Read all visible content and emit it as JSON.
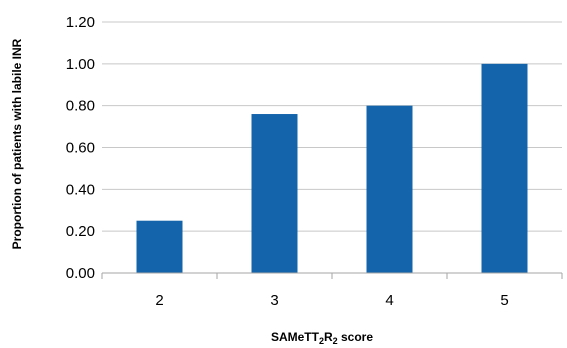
{
  "chart_data": {
    "type": "bar",
    "title": "",
    "categories": [
      "2",
      "3",
      "4",
      "5"
    ],
    "values": [
      0.25,
      0.76,
      0.8,
      1.0
    ],
    "ylabel": "Proportion of patients with labile INR",
    "xlabel": {
      "parts": [
        "SAMeTT",
        "2",
        "R",
        "2",
        " score"
      ]
    },
    "ylim": [
      0,
      1.2
    ],
    "yticks": [
      "0.00",
      "0.20",
      "0.40",
      "0.60",
      "0.80",
      "1.00",
      "1.20"
    ],
    "grid": true,
    "legend": "none",
    "colors": {
      "bar": "#1464AB",
      "grid": "#C8C8C8",
      "axis": "#A6A6A6"
    }
  }
}
